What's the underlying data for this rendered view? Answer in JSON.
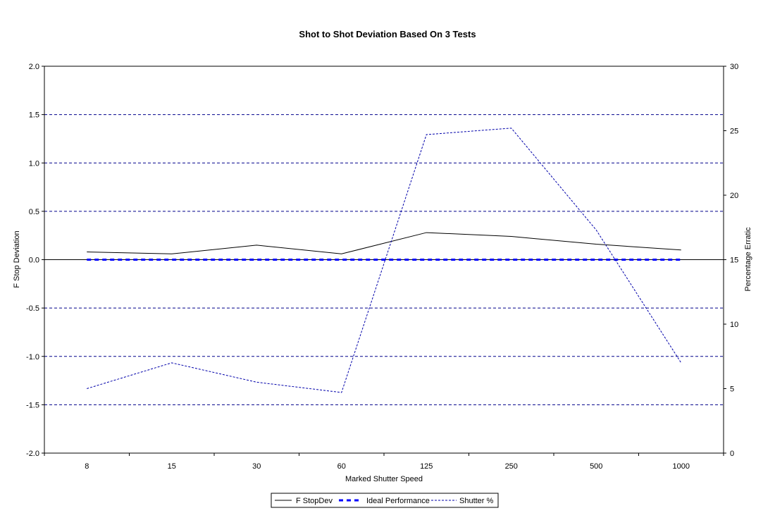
{
  "chart_data": {
    "type": "line",
    "title": "Shot to Shot Deviation Based On 3 Tests",
    "xlabel": "Marked Shutter Speed",
    "ylabel": "F Stop Deviation",
    "y2label": "Percentage Erratic",
    "categories": [
      "8",
      "15",
      "30",
      "60",
      "125",
      "250",
      "500",
      "1000"
    ],
    "ylim": [
      -2.0,
      2.0
    ],
    "y2lim": [
      0,
      30
    ],
    "yticks": [
      "-2.0",
      "-1.5",
      "-1.0",
      "-0.5",
      "0.0",
      "0.5",
      "1.0",
      "1.5",
      "2.0"
    ],
    "y2ticks": [
      "0",
      "5",
      "10",
      "15",
      "20",
      "25",
      "30"
    ],
    "grid": "horizontal dashed",
    "legend_position": "bottom",
    "series": [
      {
        "name": "F StopDev",
        "axis": "left",
        "style": "solid",
        "color": "#000000",
        "values": [
          0.08,
          0.06,
          0.15,
          0.06,
          0.28,
          0.24,
          0.16,
          0.1
        ]
      },
      {
        "name": "Ideal Performance",
        "axis": "left",
        "style": "thick-dashed",
        "color": "#0000ff",
        "values": [
          0,
          0,
          0,
          0,
          0,
          0,
          0,
          0
        ]
      },
      {
        "name": "Shutter %",
        "axis": "right",
        "style": "dotted",
        "color": "#0000aa",
        "values": [
          5.0,
          7.0,
          5.5,
          4.7,
          24.7,
          25.2,
          17.3,
          7.0
        ]
      }
    ]
  }
}
